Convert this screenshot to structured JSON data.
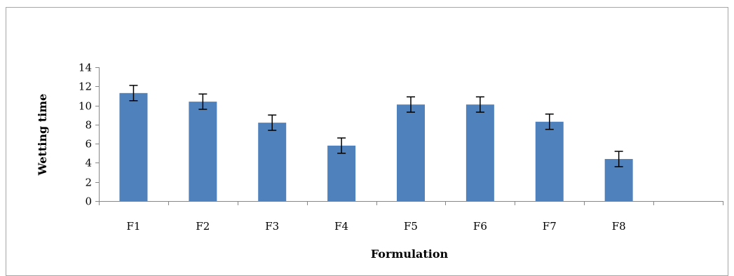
{
  "chart_data": {
    "type": "bar",
    "title": "",
    "xlabel": "Formulation",
    "ylabel": "Wetting time",
    "categories": [
      "F1",
      "F2",
      "F3",
      "F4",
      "F5",
      "F6",
      "F7",
      "F8"
    ],
    "values": [
      11.3,
      10.4,
      8.2,
      5.8,
      10.1,
      10.1,
      8.3,
      4.4
    ],
    "error": [
      0.8,
      0.8,
      0.8,
      0.8,
      0.8,
      0.8,
      0.8,
      0.8
    ],
    "ylim": [
      0,
      14
    ],
    "yticks": [
      0,
      2,
      4,
      6,
      8,
      10,
      12,
      14
    ],
    "category_slots": 9,
    "grid": false,
    "legend": "none",
    "bar_color": "#4f81bd",
    "axis_color": "#868686"
  }
}
